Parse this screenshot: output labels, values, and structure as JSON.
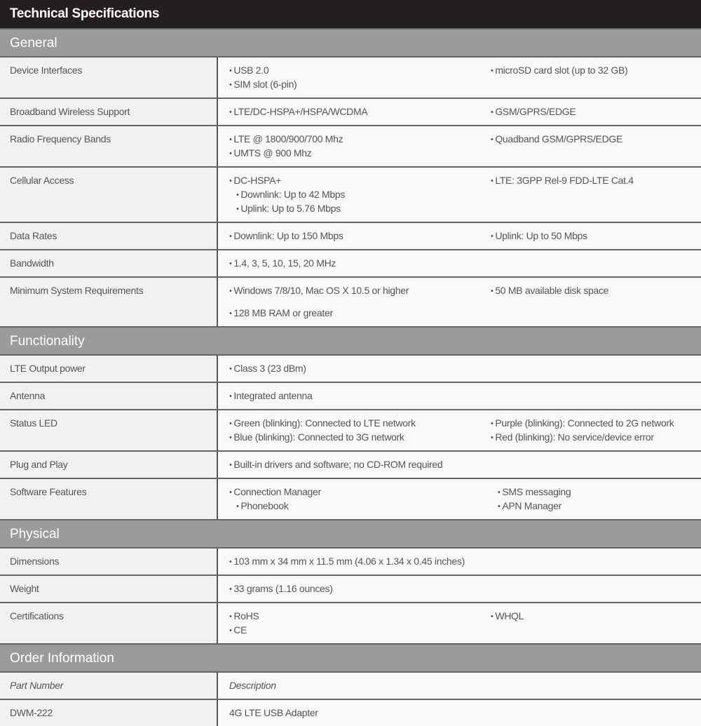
{
  "title": "Technical Specifications",
  "sections": [
    {
      "name": "General",
      "rows": [
        {
          "label": "Device Interfaces",
          "col2": [
            {
              "t": "USB 2.0"
            },
            {
              "t": "SIM slot (6-pin)"
            }
          ],
          "col3": [
            {
              "t": "microSD card slot (up to 32 GB)"
            }
          ]
        },
        {
          "label": "Broadband Wireless Support",
          "col2": [
            {
              "t": "LTE/DC-HSPA+/HSPA/WCDMA"
            }
          ],
          "col3": [
            {
              "t": "GSM/GPRS/EDGE"
            }
          ]
        },
        {
          "label": "Radio Frequency Bands",
          "col2": [
            {
              "t": "LTE @ 1800/900/700 Mhz"
            },
            {
              "t": "UMTS @ 900 Mhz"
            }
          ],
          "col3": [
            {
              "t": "Quadband GSM/GPRS/EDGE"
            }
          ]
        },
        {
          "label": "Cellular Access",
          "col2": [
            {
              "t": "DC-HSPA+"
            },
            {
              "t": "Downlink: Up to 42 Mbps",
              "indent": true
            },
            {
              "t": "Uplink: Up to 5.76 Mbps",
              "indent": true
            }
          ],
          "col3": [
            {
              "t": "LTE: 3GPP Rel-9 FDD-LTE Cat.4"
            }
          ]
        },
        {
          "label": "Data Rates",
          "col2": [
            {
              "t": "Downlink: Up to 150 Mbps"
            }
          ],
          "col3": [
            {
              "t": "Uplink: Up to 50 Mbps"
            }
          ]
        },
        {
          "label": "Bandwidth",
          "col2": [
            {
              "t": "1.4, 3, 5, 10, 15, 20 MHz"
            }
          ],
          "col3": []
        },
        {
          "label": "Minimum System Requirements",
          "col2": [
            {
              "t": "Windows 7/8/10, Mac OS X 10.5 or higher",
              "gap": true
            },
            {
              "t": "128 MB RAM or greater",
              "gap": true
            }
          ],
          "col3": [
            {
              "t": "50 MB available disk space"
            }
          ]
        }
      ]
    },
    {
      "name": "Functionality",
      "rows": [
        {
          "label": "LTE Output power",
          "col2": [
            {
              "t": "Class 3 (23 dBm)"
            }
          ],
          "col3": []
        },
        {
          "label": "Antenna",
          "col2": [
            {
              "t": "Integrated antenna"
            }
          ],
          "col3": []
        },
        {
          "label": "Status LED",
          "col2": [
            {
              "t": "Green (blinking): Connected to LTE network"
            },
            {
              "t": "Blue (blinking): Connected to 3G network"
            }
          ],
          "col3": [
            {
              "t": "Purple (blinking): Connected to 2G network"
            },
            {
              "t": "Red (blinking): No service/device error"
            }
          ]
        },
        {
          "label": "Plug and Play",
          "col2": [
            {
              "t": "Built-in drivers and software; no CD-ROM required"
            }
          ],
          "col3": []
        },
        {
          "label": "Software Features",
          "col2": [
            {
              "t": "Connection Manager"
            },
            {
              "t": "Phonebook",
              "indent": true
            }
          ],
          "col3": [
            {
              "t": "SMS messaging",
              "indent": true
            },
            {
              "t": "APN Manager",
              "indent": true
            }
          ]
        }
      ]
    },
    {
      "name": "Physical",
      "rows": [
        {
          "label": "Dimensions",
          "col2": [
            {
              "t": "103 mm x 34 mm x 11.5 mm (4.06 x 1.34 x 0.45 inches)"
            }
          ],
          "col3": []
        },
        {
          "label": "Weight",
          "col2": [
            {
              "t": "33 grams (1.16 ounces)"
            }
          ],
          "col3": []
        },
        {
          "label": "Certifications",
          "col2": [
            {
              "t": "RoHS"
            },
            {
              "t": "CE"
            }
          ],
          "col3": [
            {
              "t": "WHQL"
            }
          ]
        }
      ]
    },
    {
      "name": "Order Information",
      "rows": [
        {
          "label": "Part Number",
          "italic": true,
          "col2": [
            {
              "t": "Description",
              "plain": true
            }
          ],
          "col3": []
        },
        {
          "label": "DWM-222",
          "col2": [
            {
              "t": "4G LTE USB Adapter",
              "plain": true
            }
          ],
          "col3": []
        }
      ]
    }
  ]
}
